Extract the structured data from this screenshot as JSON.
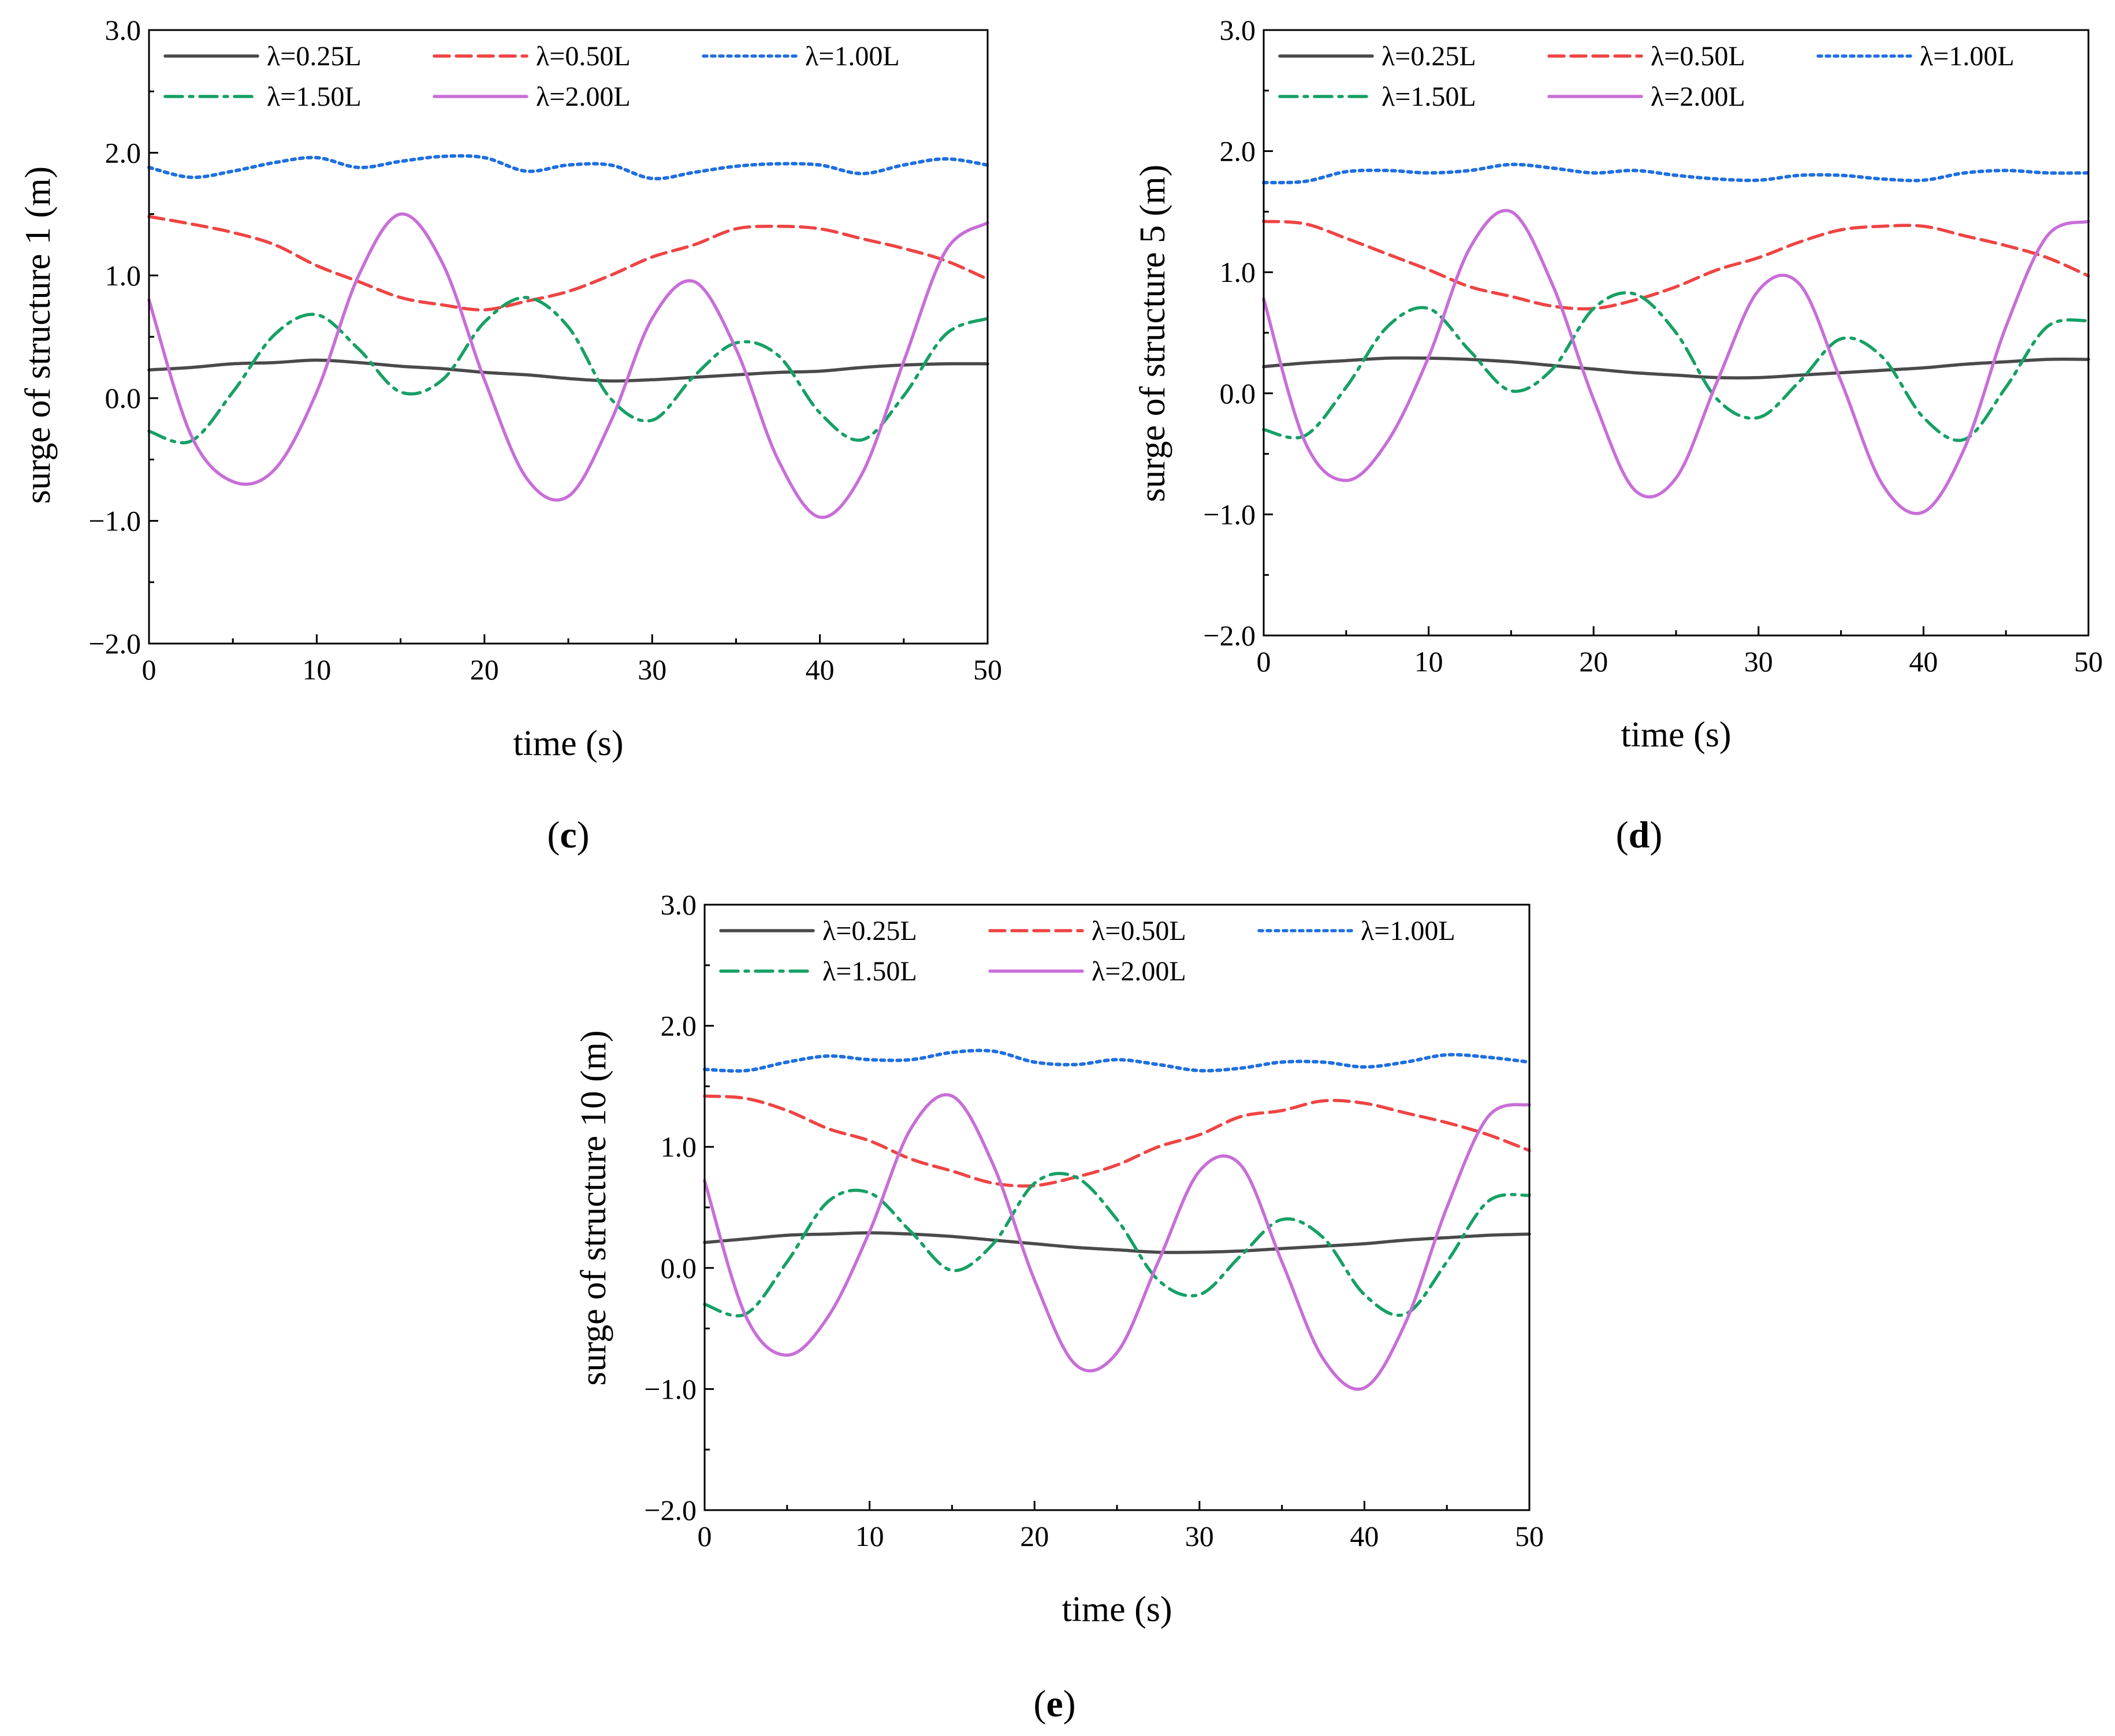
{
  "figure": {
    "series_styles": [
      {
        "name": "λ=0.25L",
        "color": "#4a4a4a",
        "dash": "solid"
      },
      {
        "name": "λ=0.50L",
        "color": "#ef4444",
        "dash": "dashed"
      },
      {
        "name": "λ=1.00L",
        "color": "#1f6fe0",
        "dash": "dotted"
      },
      {
        "name": "λ=1.50L",
        "color": "#16a065",
        "dash": "dashdot"
      },
      {
        "name": "λ=2.00L",
        "color": "#c86ed8",
        "dash": "solid"
      }
    ]
  },
  "chart_data": [
    {
      "type": "line",
      "panel_label": "c",
      "xlabel": "time (s)",
      "ylabel": "surge of structure 1 (m)",
      "xlim": [
        0,
        50
      ],
      "ylim": [
        -2.0,
        3.0
      ],
      "xticks": [
        "0",
        "10",
        "20",
        "30",
        "40",
        "50"
      ],
      "yticks": [
        "−2.0",
        "−1.0",
        "0.0",
        "1.0",
        "2.0",
        "3.0"
      ],
      "legend": [
        "λ=0.25L",
        "λ=0.50L",
        "λ=1.00L",
        "λ=1.50L",
        "λ=2.00L"
      ],
      "legend_position": "top-left",
      "x": [
        0,
        2.5,
        5,
        7.5,
        10,
        12.5,
        15,
        17.5,
        20,
        22.5,
        25,
        27.5,
        30,
        32.5,
        35,
        37.5,
        40,
        42.5,
        45,
        47.5,
        50
      ],
      "series": [
        {
          "name": "λ=0.25L",
          "values": [
            0.23,
            0.25,
            0.28,
            0.29,
            0.31,
            0.29,
            0.26,
            0.24,
            0.21,
            0.19,
            0.16,
            0.14,
            0.15,
            0.17,
            0.19,
            0.21,
            0.22,
            0.25,
            0.27,
            0.28,
            0.28
          ]
        },
        {
          "name": "λ=0.50L",
          "values": [
            1.48,
            1.42,
            1.35,
            1.25,
            1.08,
            0.95,
            0.82,
            0.76,
            0.72,
            0.79,
            0.87,
            1.0,
            1.15,
            1.25,
            1.38,
            1.4,
            1.38,
            1.3,
            1.22,
            1.12,
            0.97
          ]
        },
        {
          "name": "λ=1.00L",
          "values": [
            1.88,
            1.8,
            1.85,
            1.92,
            1.96,
            1.88,
            1.93,
            1.97,
            1.96,
            1.85,
            1.9,
            1.9,
            1.79,
            1.84,
            1.89,
            1.91,
            1.9,
            1.83,
            1.9,
            1.95,
            1.9
          ]
        },
        {
          "name": "λ=1.50L",
          "values": [
            -0.27,
            -0.35,
            0.05,
            0.52,
            0.68,
            0.4,
            0.05,
            0.15,
            0.62,
            0.82,
            0.58,
            0.0,
            -0.18,
            0.18,
            0.45,
            0.35,
            -0.12,
            -0.34,
            0.02,
            0.52,
            0.65
          ]
        },
        {
          "name": "λ=2.00L",
          "values": [
            0.8,
            -0.3,
            -0.68,
            -0.58,
            0.05,
            1.0,
            1.5,
            1.1,
            0.15,
            -0.65,
            -0.8,
            -0.2,
            0.65,
            0.95,
            0.4,
            -0.5,
            -0.97,
            -0.62,
            0.3,
            1.2,
            1.43
          ]
        }
      ]
    },
    {
      "type": "line",
      "panel_label": "d",
      "xlabel": "time (s)",
      "ylabel": "surge of structure 5 (m)",
      "xlim": [
        0,
        50
      ],
      "ylim": [
        -2.0,
        3.0
      ],
      "xticks": [
        "0",
        "10",
        "20",
        "30",
        "40",
        "50"
      ],
      "yticks": [
        "−2.0",
        "−1.0",
        "0.0",
        "1.0",
        "2.0",
        "3.0"
      ],
      "legend": [
        "λ=0.25L",
        "λ=0.50L",
        "λ=1.00L",
        "λ=1.50L",
        "λ=2.00L"
      ],
      "legend_position": "top-left",
      "x": [
        0,
        2.5,
        5,
        7.5,
        10,
        12.5,
        15,
        17.5,
        20,
        22.5,
        25,
        27.5,
        30,
        32.5,
        35,
        37.5,
        40,
        42.5,
        45,
        47.5,
        50
      ],
      "series": [
        {
          "name": "λ=0.25L",
          "values": [
            0.22,
            0.25,
            0.27,
            0.29,
            0.29,
            0.28,
            0.26,
            0.23,
            0.2,
            0.17,
            0.15,
            0.13,
            0.13,
            0.15,
            0.17,
            0.19,
            0.21,
            0.24,
            0.26,
            0.28,
            0.28
          ]
        },
        {
          "name": "λ=0.50L",
          "values": [
            1.42,
            1.4,
            1.28,
            1.15,
            1.02,
            0.88,
            0.8,
            0.72,
            0.7,
            0.77,
            0.88,
            1.02,
            1.12,
            1.25,
            1.35,
            1.38,
            1.38,
            1.3,
            1.22,
            1.12,
            0.97
          ]
        },
        {
          "name": "λ=1.00L",
          "values": [
            1.74,
            1.75,
            1.83,
            1.84,
            1.82,
            1.84,
            1.89,
            1.86,
            1.82,
            1.84,
            1.8,
            1.77,
            1.76,
            1.8,
            1.8,
            1.77,
            1.76,
            1.82,
            1.84,
            1.82,
            1.82
          ]
        },
        {
          "name": "λ=1.50L",
          "values": [
            -0.3,
            -0.35,
            0.05,
            0.55,
            0.7,
            0.35,
            0.02,
            0.2,
            0.7,
            0.82,
            0.5,
            -0.05,
            -0.2,
            0.1,
            0.45,
            0.3,
            -0.2,
            -0.38,
            0.05,
            0.55,
            0.6
          ]
        },
        {
          "name": "λ=2.00L",
          "values": [
            0.78,
            -0.4,
            -0.72,
            -0.4,
            0.3,
            1.2,
            1.5,
            0.9,
            -0.05,
            -0.8,
            -0.7,
            0.1,
            0.85,
            0.9,
            0.1,
            -0.75,
            -0.98,
            -0.45,
            0.55,
            1.3,
            1.42
          ]
        }
      ]
    },
    {
      "type": "line",
      "panel_label": "e",
      "xlabel": "time (s)",
      "ylabel": "surge of structure 10 (m)",
      "xlim": [
        0,
        50
      ],
      "ylim": [
        -2.0,
        3.0
      ],
      "xticks": [
        "0",
        "10",
        "20",
        "30",
        "40",
        "50"
      ],
      "yticks": [
        "−2.0",
        "−1.0",
        "0.0",
        "1.0",
        "2.0",
        "3.0"
      ],
      "legend": [
        "λ=0.25L",
        "λ=0.50L",
        "λ=1.00L",
        "λ=1.50L",
        "λ=2.00L"
      ],
      "legend_position": "top-left",
      "x": [
        0,
        2.5,
        5,
        7.5,
        10,
        12.5,
        15,
        17.5,
        20,
        22.5,
        25,
        27.5,
        30,
        32.5,
        35,
        37.5,
        40,
        42.5,
        45,
        47.5,
        50
      ],
      "series": [
        {
          "name": "λ=0.25L",
          "values": [
            0.21,
            0.24,
            0.27,
            0.28,
            0.29,
            0.28,
            0.26,
            0.23,
            0.2,
            0.17,
            0.15,
            0.13,
            0.13,
            0.14,
            0.16,
            0.18,
            0.2,
            0.23,
            0.25,
            0.27,
            0.28
          ]
        },
        {
          "name": "λ=0.50L",
          "values": [
            1.42,
            1.4,
            1.3,
            1.15,
            1.05,
            0.9,
            0.8,
            0.7,
            0.68,
            0.75,
            0.85,
            1.0,
            1.1,
            1.25,
            1.3,
            1.38,
            1.36,
            1.28,
            1.2,
            1.1,
            0.97
          ]
        },
        {
          "name": "λ=1.00L",
          "values": [
            1.64,
            1.63,
            1.7,
            1.75,
            1.72,
            1.72,
            1.78,
            1.79,
            1.7,
            1.68,
            1.72,
            1.68,
            1.63,
            1.65,
            1.7,
            1.7,
            1.66,
            1.7,
            1.76,
            1.74,
            1.7
          ]
        },
        {
          "name": "λ=1.50L",
          "values": [
            -0.3,
            -0.38,
            0.05,
            0.55,
            0.62,
            0.3,
            -0.02,
            0.2,
            0.7,
            0.75,
            0.4,
            -0.1,
            -0.22,
            0.1,
            0.4,
            0.25,
            -0.22,
            -0.38,
            0.05,
            0.55,
            0.6
          ]
        },
        {
          "name": "λ=2.00L",
          "values": [
            0.72,
            -0.4,
            -0.72,
            -0.4,
            0.3,
            1.15,
            1.42,
            0.85,
            -0.1,
            -0.8,
            -0.7,
            0.05,
            0.8,
            0.85,
            0.05,
            -0.75,
            -0.99,
            -0.45,
            0.5,
            1.25,
            1.35
          ]
        }
      ]
    }
  ]
}
